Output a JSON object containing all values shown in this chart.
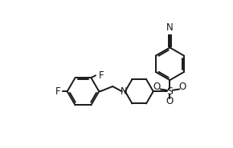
{
  "bg_color": "#ffffff",
  "line_color": "#1a1a1a",
  "line_width": 1.4,
  "font_size": 8.5,
  "xlim": [
    0,
    10
  ],
  "ylim": [
    0,
    6.5
  ]
}
